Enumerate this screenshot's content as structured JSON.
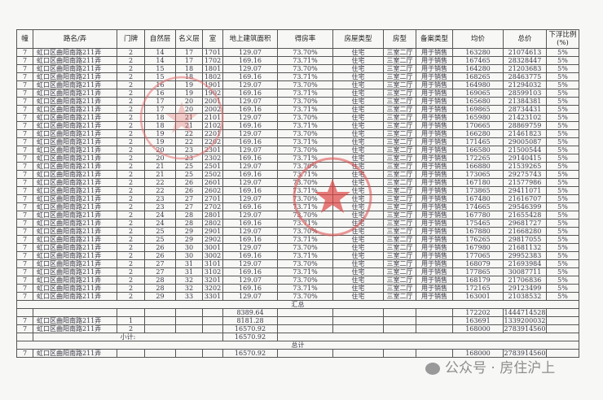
{
  "headers": [
    "幢",
    "路名/弄",
    "门牌",
    "自然层",
    "名义层",
    "室",
    "地上建筑面积",
    "得房率",
    "房屋类型",
    "房型",
    "备案类型",
    "均价",
    "总价",
    "下浮比例\n(%)"
  ],
  "rows": [
    [
      "7",
      "虹口区曲阳南路211弄",
      "2",
      "14",
      "17",
      "1701",
      "129.07",
      "73.70%",
      "住宅",
      "三室二厅",
      "用于销售",
      "163280",
      "21074613",
      "5%"
    ],
    [
      "7",
      "虹口区曲阳南路211弄",
      "2",
      "14",
      "17",
      "1702",
      "169.16",
      "73.71%",
      "住宅",
      "三室二厅",
      "用于销售",
      "167465",
      "28328447",
      "5%"
    ],
    [
      "7",
      "虹口区曲阳南路211弄",
      "2",
      "15",
      "18",
      "1801",
      "129.07",
      "73.70%",
      "住宅",
      "三室二厅",
      "用于销售",
      "164280",
      "21203683",
      "5%"
    ],
    [
      "7",
      "虹口区曲阳南路211弄",
      "2",
      "15",
      "18",
      "1802",
      "169.16",
      "73.71%",
      "住宅",
      "三室二厅",
      "用于销售",
      "168265",
      "28463775",
      "5%"
    ],
    [
      "7",
      "虹口区曲阳南路211弄",
      "2",
      "16",
      "19",
      "1901",
      "129.07",
      "73.70%",
      "住宅",
      "三室二厅",
      "用于销售",
      "164980",
      "21294032",
      "5%"
    ],
    [
      "7",
      "虹口区曲阳南路211弄",
      "2",
      "16",
      "19",
      "1902",
      "169.16",
      "73.71%",
      "住宅",
      "三室二厅",
      "用于销售",
      "169065",
      "28599103",
      "5%"
    ],
    [
      "7",
      "虹口区曲阳南路211弄",
      "2",
      "17",
      "20",
      "2001",
      "129.07",
      "73.70%",
      "住宅",
      "三室二厅",
      "用于销售",
      "165680",
      "21384381",
      "5%"
    ],
    [
      "7",
      "虹口区曲阳南路211弄",
      "2",
      "17",
      "20",
      "2002",
      "169.16",
      "73.71%",
      "住宅",
      "三室二厅",
      "用于销售",
      "169865",
      "28734431",
      "5%"
    ],
    [
      "7",
      "虹口区曲阳南路211弄",
      "2",
      "18",
      "21",
      "2101",
      "129.07",
      "73.70%",
      "住宅",
      "三室二厅",
      "用于销售",
      "165980",
      "21423102",
      "5%"
    ],
    [
      "7",
      "虹口区曲阳南路211弄",
      "2",
      "18",
      "21",
      "2102",
      "169.16",
      "73.71%",
      "住宅",
      "三室二厅",
      "用于销售",
      "170665",
      "28869759",
      "5%"
    ],
    [
      "7",
      "虹口区曲阳南路211弄",
      "2",
      "19",
      "22",
      "2201",
      "129.07",
      "73.70%",
      "住宅",
      "三室二厅",
      "用于销售",
      "166280",
      "21461823",
      "5%"
    ],
    [
      "7",
      "虹口区曲阳南路211弄",
      "2",
      "19",
      "22",
      "2202",
      "169.16",
      "73.71%",
      "住宅",
      "三室二厅",
      "用于销售",
      "171465",
      "29005087",
      "5%"
    ],
    [
      "7",
      "虹口区曲阳南路211弄",
      "2",
      "20",
      "23",
      "2301",
      "129.07",
      "73.70%",
      "住宅",
      "三室二厅",
      "用于销售",
      "166580",
      "21500544",
      "5%"
    ],
    [
      "7",
      "虹口区曲阳南路211弄",
      "2",
      "20",
      "23",
      "2302",
      "169.16",
      "73.71%",
      "住宅",
      "三室二厅",
      "用于销售",
      "172265",
      "29140415",
      "5%"
    ],
    [
      "7",
      "虹口区曲阳南路211弄",
      "2",
      "21",
      "25",
      "2501",
      "129.07",
      "73.70%",
      "住宅",
      "三室二厅",
      "用于销售",
      "166880",
      "21539265",
      "5%"
    ],
    [
      "7",
      "虹口区曲阳南路211弄",
      "2",
      "21",
      "25",
      "2502",
      "169.16",
      "73.71%",
      "住宅",
      "三室二厅",
      "用于销售",
      "173065",
      "29275743",
      "5%"
    ],
    [
      "7",
      "虹口区曲阳南路211弄",
      "2",
      "22",
      "26",
      "2601",
      "129.07",
      "73.70%",
      "住宅",
      "三室二厅",
      "用于销售",
      "167180",
      "21577986",
      "5%"
    ],
    [
      "7",
      "虹口区曲阳南路211弄",
      "2",
      "22",
      "26",
      "2602",
      "169.16",
      "73.71%",
      "住宅",
      "三室二厅",
      "用于销售",
      "173865",
      "29411071",
      "5%"
    ],
    [
      "7",
      "虹口区曲阳南路211弄",
      "2",
      "23",
      "27",
      "2701",
      "129.07",
      "73.70%",
      "住宅",
      "三室二厅",
      "用于销售",
      "167480",
      "21616707",
      "5%"
    ],
    [
      "7",
      "虹口区曲阳南路211弄",
      "2",
      "23",
      "27",
      "2702",
      "169.16",
      "73.71%",
      "住宅",
      "三室二厅",
      "用于销售",
      "174665",
      "29546399",
      "5%"
    ],
    [
      "7",
      "虹口区曲阳南路211弄",
      "2",
      "24",
      "28",
      "2801",
      "129.07",
      "73.70%",
      "住宅",
      "三室二厅",
      "用于销售",
      "167780",
      "21655428",
      "5%"
    ],
    [
      "7",
      "虹口区曲阳南路211弄",
      "2",
      "24",
      "28",
      "2802",
      "169.16",
      "73.71%",
      "住宅",
      "三室二厅",
      "用于销售",
      "175465",
      "29681727",
      "5%"
    ],
    [
      "7",
      "虹口区曲阳南路211弄",
      "2",
      "25",
      "29",
      "2901",
      "129.07",
      "73.70%",
      "住宅",
      "三室二厅",
      "用于销售",
      "167880",
      "21668280",
      "5%"
    ],
    [
      "7",
      "虹口区曲阳南路211弄",
      "2",
      "25",
      "29",
      "2902",
      "169.16",
      "73.71%",
      "住宅",
      "三室二厅",
      "用于销售",
      "176265",
      "29817055",
      "5%"
    ],
    [
      "7",
      "虹口区曲阳南路211弄",
      "2",
      "26",
      "30",
      "3001",
      "129.07",
      "73.70%",
      "住宅",
      "三室二厅",
      "用于销售",
      "167980",
      "21681132",
      "5%"
    ],
    [
      "7",
      "虹口区曲阳南路211弄",
      "2",
      "26",
      "30",
      "3002",
      "169.16",
      "73.71%",
      "住宅",
      "三室二厅",
      "用于销售",
      "177065",
      "29952383",
      "5%"
    ],
    [
      "7",
      "虹口区曲阳南路211弄",
      "2",
      "27",
      "31",
      "3101",
      "129.07",
      "73.70%",
      "住宅",
      "三室二厅",
      "用于销售",
      "168079",
      "21693984",
      "5%"
    ],
    [
      "7",
      "虹口区曲阳南路211弄",
      "2",
      "27",
      "31",
      "3102",
      "169.16",
      "73.71%",
      "住宅",
      "三室二厅",
      "用于销售",
      "177865",
      "30087711",
      "5%"
    ],
    [
      "7",
      "虹口区曲阳南路211弄",
      "2",
      "28",
      "32",
      "3201",
      "129.07",
      "73.70%",
      "住宅",
      "三室二厅",
      "用于销售",
      "168179",
      "21706836",
      "5%"
    ],
    [
      "7",
      "虹口区曲阳南路211弄",
      "2",
      "28",
      "32",
      "3202",
      "169.16",
      "73.71%",
      "住宅",
      "三室二厅",
      "用于销售",
      "172165",
      "29123499",
      "5%"
    ],
    [
      "7",
      "虹口区曲阳南路211弄",
      "2",
      "29",
      "33",
      "3301",
      "129.07",
      "73.70%",
      "住宅",
      "三室二厅",
      "用于销售",
      "163001",
      "21038532",
      "5%"
    ]
  ],
  "summary": {
    "title": "汇总",
    "rows": [
      [
        "",
        "",
        "",
        "8389.64",
        "172202",
        "1444714528"
      ],
      [
        "7",
        "虹口区曲阳南路211弄",
        "1",
        "8181.28",
        "163691",
        "1339200032"
      ],
      [
        "7",
        "虹口区曲阳南路211弄",
        "2",
        "16570.92",
        "168000",
        "2783914560"
      ]
    ],
    "subtotal_label": "小计:",
    "subtotal_area": "16570.92"
  },
  "total": {
    "title": "总计",
    "row": [
      "7",
      "虹口区曲阳南路211弄",
      "16570.92",
      "168000",
      "2783914560"
    ]
  },
  "watermark": "公众号 · 房住沪上",
  "stamp_color": "#e05050"
}
